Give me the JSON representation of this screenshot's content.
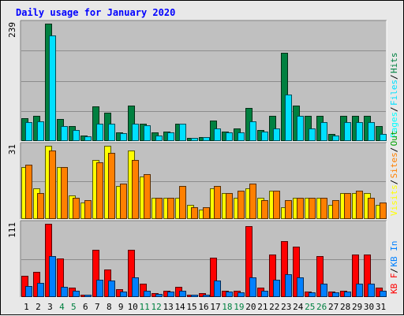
{
  "title": "Daily usage for January 2020",
  "colors": {
    "background": "#e8e8e8",
    "plot_background": "#c0c0c0",
    "gridline": "#8c8c8c",
    "title": "#0000ff",
    "hits": "#008040",
    "files": "#00e0ff",
    "pages": "#00ffff",
    "visits": "#ffff00",
    "sites": "#ff8000",
    "kb_in": "#0080ff",
    "kb_out": "#00a000",
    "kb_f": "#ff0000",
    "weekday_label": "#000000",
    "weekend_label": "#008040"
  },
  "chart_data": [
    {
      "type": "bar",
      "name": "top-panel",
      "ymax_label": "239",
      "ylim": [
        0,
        239
      ],
      "legend_labels": [
        "Pages",
        "Files",
        "Hits"
      ],
      "legend_colors": [
        "#00ffff",
        "#00e0ff",
        "#008040"
      ],
      "categories": [
        "1",
        "2",
        "3",
        "4",
        "5",
        "6",
        "7",
        "8",
        "9",
        "10",
        "11",
        "12",
        "13",
        "14",
        "15",
        "16",
        "17",
        "18",
        "19",
        "20",
        "21",
        "22",
        "23",
        "24",
        "25",
        "26",
        "27",
        "28",
        "29",
        "30",
        "31"
      ],
      "series": [
        {
          "name": "Hits",
          "color": "#008040",
          "values": [
            47,
            52,
            239,
            45,
            30,
            12,
            70,
            58,
            18,
            72,
            35,
            18,
            20,
            35,
            7,
            8,
            42,
            20,
            26,
            68,
            22,
            52,
            180,
            72,
            52,
            52,
            15,
            52,
            52,
            52,
            30
          ]
        },
        {
          "name": "Files",
          "color": "#00e0ff",
          "values": [
            38,
            40,
            215,
            30,
            22,
            10,
            35,
            35,
            16,
            35,
            32,
            12,
            18,
            35,
            7,
            8,
            25,
            18,
            17,
            40,
            20,
            25,
            95,
            52,
            25,
            38,
            12,
            38,
            38,
            38,
            14
          ]
        },
        {
          "name": "Pages",
          "color": "#00ffff",
          "values": [
            0,
            0,
            0,
            0,
            0,
            0,
            0,
            0,
            0,
            0,
            0,
            0,
            0,
            0,
            0,
            0,
            0,
            0,
            0,
            0,
            0,
            0,
            0,
            0,
            0,
            0,
            0,
            0,
            0,
            0,
            0
          ]
        }
      ]
    },
    {
      "type": "bar",
      "name": "middle-panel",
      "ymax_label": "31",
      "ylim": [
        0,
        31
      ],
      "legend_labels": [
        "Visits",
        "Sites",
        "Out"
      ],
      "legend_colors": [
        "#ffff00",
        "#ff8000",
        "#00a000"
      ],
      "categories": [
        "1",
        "2",
        "3",
        "4",
        "5",
        "6",
        "7",
        "8",
        "9",
        "10",
        "11",
        "12",
        "13",
        "14",
        "15",
        "16",
        "17",
        "18",
        "19",
        "20",
        "21",
        "22",
        "23",
        "24",
        "25",
        "26",
        "27",
        "28",
        "29",
        "30",
        "31"
      ],
      "series": [
        {
          "name": "Visits",
          "color": "#ffff00",
          "values": [
            22,
            13,
            31,
            22,
            10,
            7,
            25,
            31,
            14,
            29,
            18,
            9,
            9,
            9,
            6,
            4,
            13,
            11,
            9,
            13,
            9,
            12,
            5,
            9,
            9,
            9,
            6,
            11,
            11,
            11,
            6
          ]
        },
        {
          "name": "Sites",
          "color": "#ff8000",
          "values": [
            23,
            11,
            29,
            22,
            9,
            8,
            24,
            28,
            15,
            25,
            19,
            9,
            9,
            14,
            5,
            5,
            14,
            11,
            12,
            15,
            8,
            12,
            8,
            9,
            9,
            9,
            8,
            11,
            12,
            9,
            7
          ]
        }
      ]
    },
    {
      "type": "bar",
      "name": "bottom-panel",
      "ymax_label": "111",
      "ylim": [
        0,
        111
      ],
      "legend_labels": [
        "KB F",
        "KB In"
      ],
      "legend_colors": [
        "#ff0000",
        "#0080ff"
      ],
      "categories": [
        "1",
        "2",
        "3",
        "4",
        "5",
        "6",
        "7",
        "8",
        "9",
        "10",
        "11",
        "12",
        "13",
        "14",
        "15",
        "16",
        "17",
        "18",
        "19",
        "20",
        "21",
        "22",
        "23",
        "24",
        "25",
        "26",
        "27",
        "28",
        "29",
        "30",
        "31"
      ],
      "series": [
        {
          "name": "KB F",
          "color": "#ff0000",
          "values": [
            32,
            38,
            111,
            58,
            14,
            4,
            72,
            42,
            12,
            72,
            20,
            6,
            10,
            15,
            3,
            6,
            60,
            10,
            10,
            108,
            14,
            65,
            85,
            76,
            8,
            62,
            8,
            10,
            64,
            65,
            14
          ]
        },
        {
          "name": "KB In",
          "color": "#0080ff",
          "values": [
            17,
            22,
            62,
            16,
            10,
            4,
            26,
            25,
            8,
            30,
            10,
            5,
            8,
            10,
            3,
            4,
            25,
            8,
            7,
            30,
            9,
            26,
            35,
            30,
            7,
            20,
            7,
            8,
            20,
            20,
            10
          ]
        }
      ]
    }
  ],
  "x_axis": {
    "labels": [
      "1",
      "2",
      "3",
      "4",
      "5",
      "6",
      "7",
      "8",
      "9",
      "10",
      "11",
      "12",
      "13",
      "14",
      "15",
      "16",
      "17",
      "18",
      "19",
      "20",
      "21",
      "22",
      "23",
      "24",
      "25",
      "26",
      "27",
      "28",
      "29",
      "30",
      "31"
    ],
    "weekend_days": [
      "4",
      "5",
      "11",
      "12",
      "18",
      "19",
      "25",
      "26"
    ]
  }
}
